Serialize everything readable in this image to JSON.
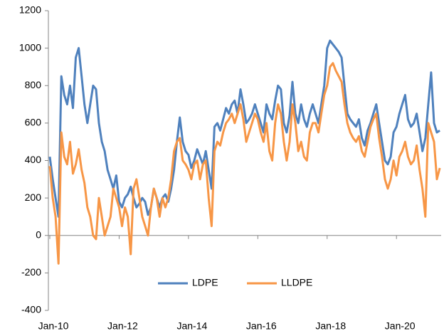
{
  "chart_data": {
    "type": "line",
    "categories": [
      "Jan-10",
      null,
      null,
      null,
      null,
      null,
      null,
      null,
      null,
      null,
      null,
      null,
      null,
      null,
      null,
      null,
      null,
      null,
      null,
      null,
      null,
      null,
      null,
      null,
      "Jan-12",
      null,
      null,
      null,
      null,
      null,
      null,
      null,
      null,
      null,
      null,
      null,
      null,
      null,
      null,
      null,
      null,
      null,
      null,
      null,
      null,
      null,
      null,
      null,
      "Jan-14",
      null,
      null,
      null,
      null,
      null,
      null,
      null,
      null,
      null,
      null,
      null,
      null,
      null,
      null,
      null,
      null,
      null,
      null,
      null,
      null,
      null,
      null,
      null,
      "Jan-16",
      null,
      null,
      null,
      null,
      null,
      null,
      null,
      null,
      null,
      null,
      null,
      null,
      null,
      null,
      null,
      null,
      null,
      null,
      null,
      null,
      null,
      null,
      null,
      "Jan-18",
      null,
      null,
      null,
      null,
      null,
      null,
      null,
      null,
      null,
      null,
      null,
      null,
      null,
      null,
      null,
      null,
      null,
      null,
      null,
      null,
      null,
      null,
      null,
      "Jan-20",
      null,
      null,
      null,
      null,
      null,
      null,
      null,
      null,
      null,
      null,
      null,
      null,
      null,
      null,
      null
    ],
    "series": [
      {
        "name": "LDPE",
        "color": "#4f81bd",
        "values": [
          420,
          300,
          200,
          100,
          850,
          750,
          700,
          800,
          680,
          950,
          1000,
          850,
          700,
          600,
          700,
          800,
          780,
          600,
          500,
          450,
          350,
          300,
          250,
          320,
          180,
          150,
          200,
          220,
          260,
          200,
          150,
          170,
          200,
          180,
          110,
          150,
          250,
          200,
          150,
          200,
          220,
          180,
          250,
          350,
          500,
          630,
          500,
          450,
          430,
          360,
          400,
          460,
          420,
          380,
          450,
          350,
          250,
          580,
          600,
          560,
          620,
          680,
          650,
          700,
          720,
          650,
          780,
          700,
          600,
          620,
          650,
          700,
          650,
          600,
          550,
          700,
          650,
          620,
          720,
          800,
          780,
          600,
          550,
          640,
          820,
          650,
          600,
          700,
          620,
          580,
          650,
          700,
          650,
          600,
          700,
          800,
          1000,
          1040,
          1020,
          1000,
          980,
          950,
          800,
          650,
          620,
          600,
          580,
          620,
          520,
          480,
          560,
          600,
          650,
          700,
          600,
          500,
          400,
          380,
          420,
          550,
          580,
          650,
          700,
          750,
          620,
          580,
          600,
          650,
          550,
          450,
          520,
          700,
          870,
          600,
          550,
          560
        ]
      },
      {
        "name": "LLDPE",
        "color": "#f79646",
        "values": [
          370,
          200,
          100,
          -150,
          550,
          420,
          380,
          500,
          330,
          380,
          460,
          350,
          280,
          150,
          100,
          0,
          -20,
          200,
          100,
          0,
          50,
          100,
          250,
          200,
          150,
          50,
          150,
          100,
          -100,
          250,
          300,
          200,
          100,
          50,
          0,
          150,
          250,
          200,
          100,
          200,
          150,
          200,
          300,
          450,
          500,
          520,
          400,
          380,
          350,
          300,
          380,
          400,
          300,
          380,
          400,
          200,
          50,
          450,
          500,
          480,
          550,
          600,
          620,
          650,
          600,
          650,
          700,
          620,
          500,
          550,
          600,
          650,
          620,
          550,
          500,
          600,
          450,
          400,
          600,
          700,
          650,
          500,
          400,
          500,
          700,
          600,
          450,
          500,
          420,
          400,
          550,
          600,
          600,
          550,
          650,
          750,
          800,
          900,
          920,
          880,
          850,
          820,
          700,
          600,
          550,
          520,
          500,
          530,
          450,
          420,
          500,
          580,
          620,
          650,
          520,
          420,
          300,
          250,
          300,
          400,
          320,
          420,
          450,
          500,
          420,
          380,
          400,
          480,
          350,
          250,
          100,
          600,
          550,
          500,
          300,
          360
        ]
      }
    ],
    "ylim": [
      -400,
      1200
    ],
    "yticks": [
      -400,
      -200,
      0,
      200,
      400,
      600,
      800,
      1000,
      1200
    ],
    "grid": false,
    "legend": "bottom"
  }
}
